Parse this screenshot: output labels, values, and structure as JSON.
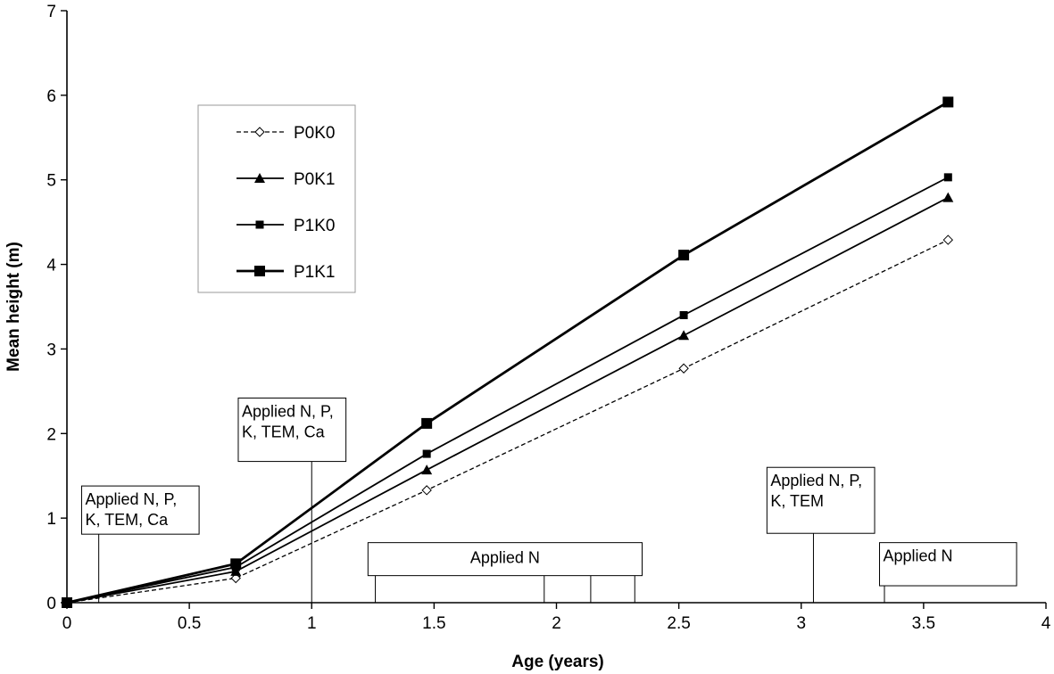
{
  "chart_data": {
    "type": "line",
    "title": "",
    "xlabel": "Age (years)",
    "ylabel": "Mean height (m)",
    "xlim": [
      0,
      4
    ],
    "ylim": [
      0,
      7
    ],
    "x_ticks": [
      "0",
      "0.5",
      "1",
      "1.5",
      "2",
      "2.5",
      "3",
      "3.5",
      "4"
    ],
    "y_ticks": [
      "0",
      "1",
      "2",
      "3",
      "4",
      "5",
      "6",
      "7"
    ],
    "grid": false,
    "legend_position": "upper-left",
    "x": [
      0,
      0.69,
      1.47,
      2.52,
      3.6
    ],
    "series": [
      {
        "name": "P0K0",
        "values": [
          0,
          0.29,
          1.33,
          2.77,
          4.29
        ],
        "style": "dashed",
        "marker": "open-diamond"
      },
      {
        "name": "P0K1",
        "values": [
          0,
          0.37,
          1.57,
          3.16,
          4.79
        ],
        "style": "solid",
        "marker": "triangle"
      },
      {
        "name": "P1K0",
        "values": [
          0,
          0.42,
          1.76,
          3.4,
          5.03
        ],
        "style": "solid",
        "marker": "square"
      },
      {
        "name": "P1K1",
        "values": [
          0,
          0.46,
          2.12,
          4.11,
          5.92
        ],
        "style": "solid-thick",
        "marker": "square-large"
      }
    ],
    "annotations": [
      {
        "text_lines": [
          "Applied N, P,",
          "K, TEM, Ca"
        ],
        "box_x": [
          0.06,
          0.54
        ],
        "box_y": [
          0.81,
          1.38
        ],
        "leaders": [
          0.13
        ]
      },
      {
        "text_lines": [
          "Applied N, P,",
          "K, TEM, Ca"
        ],
        "box_x": [
          0.7,
          1.14
        ],
        "box_y": [
          1.67,
          2.42
        ],
        "leaders": [
          1.0
        ]
      },
      {
        "text_lines": [
          "Applied N"
        ],
        "box_x": [
          1.23,
          2.35
        ],
        "box_y": [
          0.32,
          0.71
        ],
        "leaders": [
          1.26,
          1.95,
          2.14,
          2.32
        ]
      },
      {
        "text_lines": [
          "Applied N, P,",
          "K, TEM"
        ],
        "box_x": [
          2.86,
          3.3
        ],
        "box_y": [
          0.82,
          1.6
        ],
        "leaders": [
          3.05
        ]
      },
      {
        "text_lines": [
          "Applied N"
        ],
        "box_x": [
          3.32,
          3.88
        ],
        "box_y": [
          0.2,
          0.71
        ],
        "leaders": [
          3.34
        ]
      }
    ]
  }
}
